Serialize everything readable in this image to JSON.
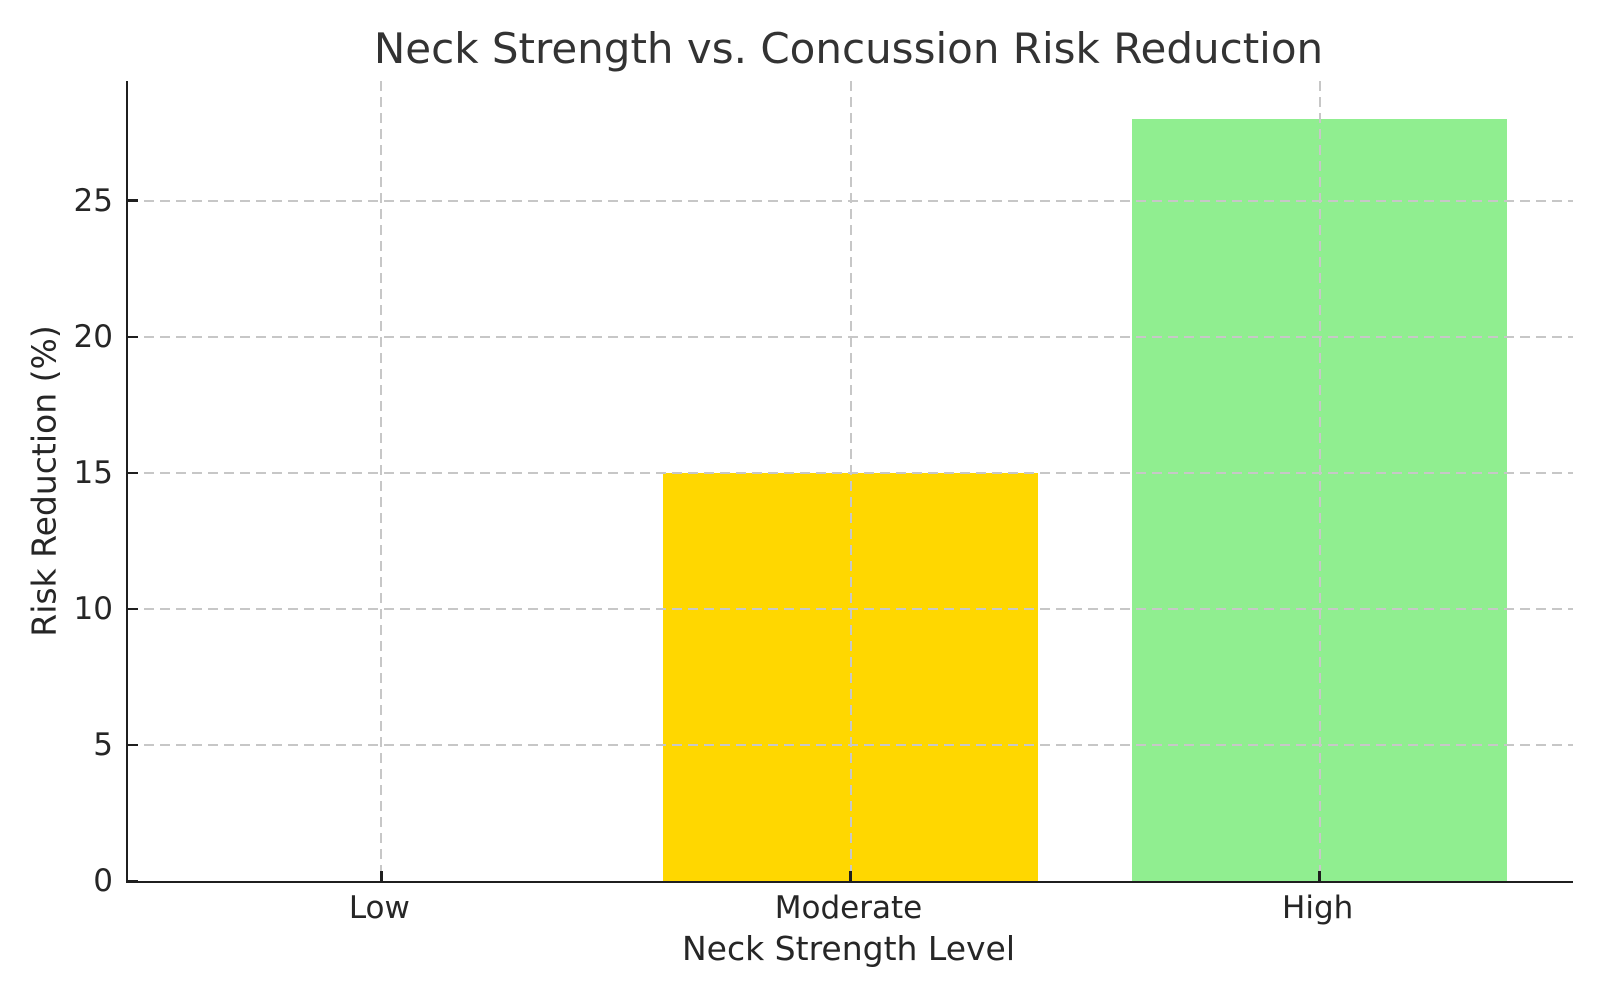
{
  "chart_data": {
    "type": "bar",
    "title": "Neck Strength vs. Concussion Risk Reduction",
    "xlabel": "Neck Strength Level",
    "ylabel": "Risk Reduction (%)",
    "categories": [
      "Low",
      "Moderate",
      "High"
    ],
    "values": [
      0,
      15,
      28
    ],
    "bar_colors": [
      null,
      "#FFD700",
      "#90EE90"
    ],
    "yticks": [
      0,
      5,
      10,
      15,
      20,
      25
    ],
    "ylim": [
      0,
      29.4
    ],
    "xlim": [
      -0.54,
      2.54
    ],
    "bar_width": 0.8,
    "grid": {
      "visible": true,
      "style": "dashed",
      "color": "#c7c7c7",
      "drawn_over_bars": true
    },
    "colors": {
      "background": "#ffffff",
      "spine": "#1f1f1f",
      "text": "#262626",
      "title_text": "#333333"
    }
  }
}
